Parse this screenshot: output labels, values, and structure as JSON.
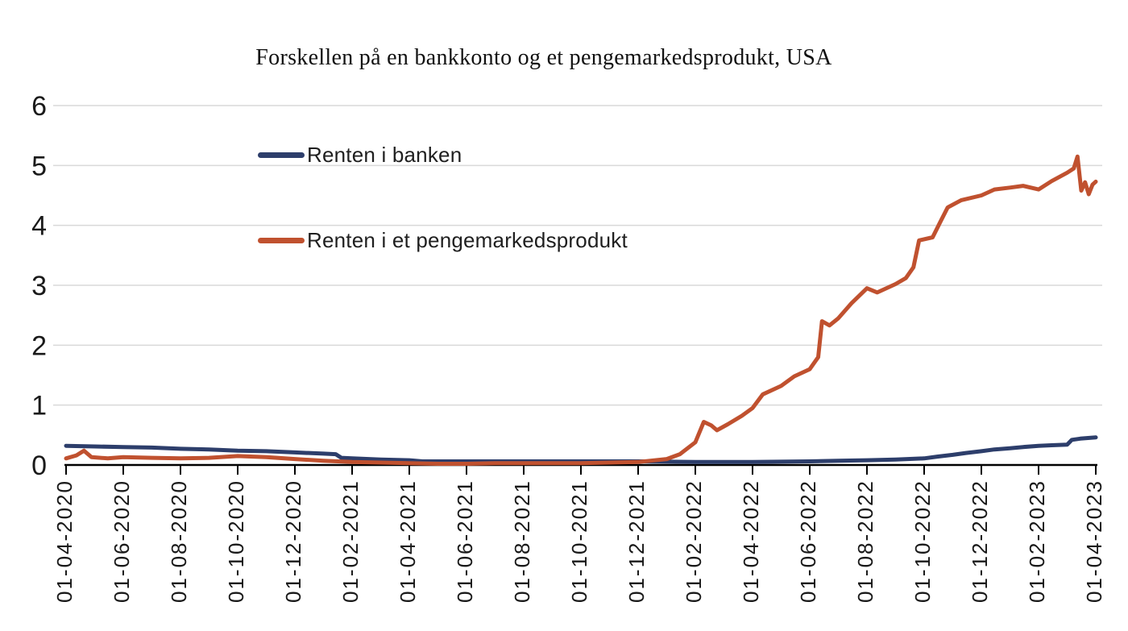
{
  "chart_data": {
    "type": "line",
    "title": "Forskellen på en bankkonto og et pengemarkedsprodukt, USA",
    "xlabel": "",
    "ylabel": "",
    "ylim": [
      0,
      6
    ],
    "y_ticks": [
      0,
      1,
      2,
      3,
      4,
      5,
      6
    ],
    "x_tick_labels": [
      "01-04-2020",
      "01-06-2020",
      "01-08-2020",
      "01-10-2020",
      "01-12-2020",
      "01-02-2021",
      "01-04-2021",
      "01-06-2021",
      "01-08-2021",
      "01-10-2021",
      "01-12-2021",
      "01-02-2022",
      "01-04-2022",
      "01-06-2022",
      "01-08-2022",
      "01-10-2022",
      "01-12-2022",
      "01-02-2023",
      "01-04-2023"
    ],
    "date_format": "DD-MM-YYYY",
    "grid": "horizontal-only",
    "legend_position": "inside-upper-left",
    "series": [
      {
        "name": "Renten i banken",
        "color": "#2d3e6b",
        "points": [
          [
            "01-04-2020",
            0.32
          ],
          [
            "01-05-2020",
            0.31
          ],
          [
            "01-06-2020",
            0.3
          ],
          [
            "01-07-2020",
            0.29
          ],
          [
            "01-08-2020",
            0.27
          ],
          [
            "01-09-2020",
            0.26
          ],
          [
            "01-10-2020",
            0.24
          ],
          [
            "01-11-2020",
            0.23
          ],
          [
            "01-12-2020",
            0.21
          ],
          [
            "01-01-2021",
            0.19
          ],
          [
            "14-01-2021",
            0.18
          ],
          [
            "20-01-2021",
            0.12
          ],
          [
            "01-02-2021",
            0.11
          ],
          [
            "01-03-2021",
            0.09
          ],
          [
            "01-04-2021",
            0.08
          ],
          [
            "15-04-2021",
            0.06
          ],
          [
            "01-06-2021",
            0.06
          ],
          [
            "01-08-2021",
            0.06
          ],
          [
            "01-10-2021",
            0.06
          ],
          [
            "01-12-2021",
            0.06
          ],
          [
            "01-02-2022",
            0.05
          ],
          [
            "01-04-2022",
            0.05
          ],
          [
            "01-06-2022",
            0.06
          ],
          [
            "01-07-2022",
            0.07
          ],
          [
            "01-08-2022",
            0.08
          ],
          [
            "01-09-2022",
            0.09
          ],
          [
            "01-10-2022",
            0.11
          ],
          [
            "15-10-2022",
            0.14
          ],
          [
            "01-11-2022",
            0.17
          ],
          [
            "15-11-2022",
            0.2
          ],
          [
            "01-12-2022",
            0.23
          ],
          [
            "15-12-2022",
            0.26
          ],
          [
            "01-01-2023",
            0.28
          ],
          [
            "15-01-2023",
            0.3
          ],
          [
            "01-02-2023",
            0.32
          ],
          [
            "15-02-2023",
            0.33
          ],
          [
            "01-03-2023",
            0.34
          ],
          [
            "06-03-2023",
            0.42
          ],
          [
            "15-03-2023",
            0.44
          ],
          [
            "01-04-2023",
            0.46
          ]
        ]
      },
      {
        "name": "Renten i et pengemarkedsprodukt",
        "color": "#c0512f",
        "points": [
          [
            "01-04-2020",
            0.11
          ],
          [
            "12-04-2020",
            0.16
          ],
          [
            "20-04-2020",
            0.24
          ],
          [
            "28-04-2020",
            0.13
          ],
          [
            "15-05-2020",
            0.11
          ],
          [
            "01-06-2020",
            0.13
          ],
          [
            "01-07-2020",
            0.12
          ],
          [
            "01-08-2020",
            0.11
          ],
          [
            "01-09-2020",
            0.12
          ],
          [
            "01-10-2020",
            0.15
          ],
          [
            "01-11-2020",
            0.13
          ],
          [
            "01-12-2020",
            0.1
          ],
          [
            "01-01-2021",
            0.07
          ],
          [
            "01-02-2021",
            0.05
          ],
          [
            "01-03-2021",
            0.04
          ],
          [
            "01-04-2021",
            0.03
          ],
          [
            "01-05-2021",
            0.02
          ],
          [
            "01-06-2021",
            0.02
          ],
          [
            "01-07-2021",
            0.03
          ],
          [
            "01-08-2021",
            0.03
          ],
          [
            "01-09-2021",
            0.03
          ],
          [
            "01-10-2021",
            0.03
          ],
          [
            "01-11-2021",
            0.04
          ],
          [
            "01-12-2021",
            0.05
          ],
          [
            "01-01-2022",
            0.1
          ],
          [
            "15-01-2022",
            0.18
          ],
          [
            "01-02-2022",
            0.38
          ],
          [
            "10-02-2022",
            0.72
          ],
          [
            "18-02-2022",
            0.66
          ],
          [
            "24-02-2022",
            0.58
          ],
          [
            "05-03-2022",
            0.68
          ],
          [
            "20-03-2022",
            0.82
          ],
          [
            "01-04-2022",
            0.95
          ],
          [
            "12-04-2022",
            1.18
          ],
          [
            "01-05-2022",
            1.32
          ],
          [
            "15-05-2022",
            1.48
          ],
          [
            "01-06-2022",
            1.6
          ],
          [
            "10-06-2022",
            1.8
          ],
          [
            "14-06-2022",
            2.4
          ],
          [
            "22-06-2022",
            2.33
          ],
          [
            "01-07-2022",
            2.45
          ],
          [
            "15-07-2022",
            2.7
          ],
          [
            "01-08-2022",
            2.95
          ],
          [
            "12-08-2022",
            2.88
          ],
          [
            "01-09-2022",
            3.02
          ],
          [
            "12-09-2022",
            3.12
          ],
          [
            "20-09-2022",
            3.3
          ],
          [
            "26-09-2022",
            3.75
          ],
          [
            "10-10-2022",
            3.8
          ],
          [
            "18-10-2022",
            4.05
          ],
          [
            "26-10-2022",
            4.3
          ],
          [
            "10-11-2022",
            4.42
          ],
          [
            "01-12-2022",
            4.5
          ],
          [
            "15-12-2022",
            4.6
          ],
          [
            "01-01-2023",
            4.63
          ],
          [
            "15-01-2023",
            4.66
          ],
          [
            "01-02-2023",
            4.6
          ],
          [
            "15-02-2023",
            4.74
          ],
          [
            "01-03-2023",
            4.88
          ],
          [
            "08-03-2023",
            4.95
          ],
          [
            "12-03-2023",
            5.15
          ],
          [
            "16-03-2023",
            4.58
          ],
          [
            "20-03-2023",
            4.72
          ],
          [
            "24-03-2023",
            4.52
          ],
          [
            "28-03-2023",
            4.68
          ],
          [
            "01-04-2023",
            4.73
          ]
        ]
      }
    ]
  },
  "colors": {
    "grid": "#d9d9d9",
    "axis": "#000000",
    "tick_text": "#1a1a1a",
    "background": "#ffffff"
  }
}
